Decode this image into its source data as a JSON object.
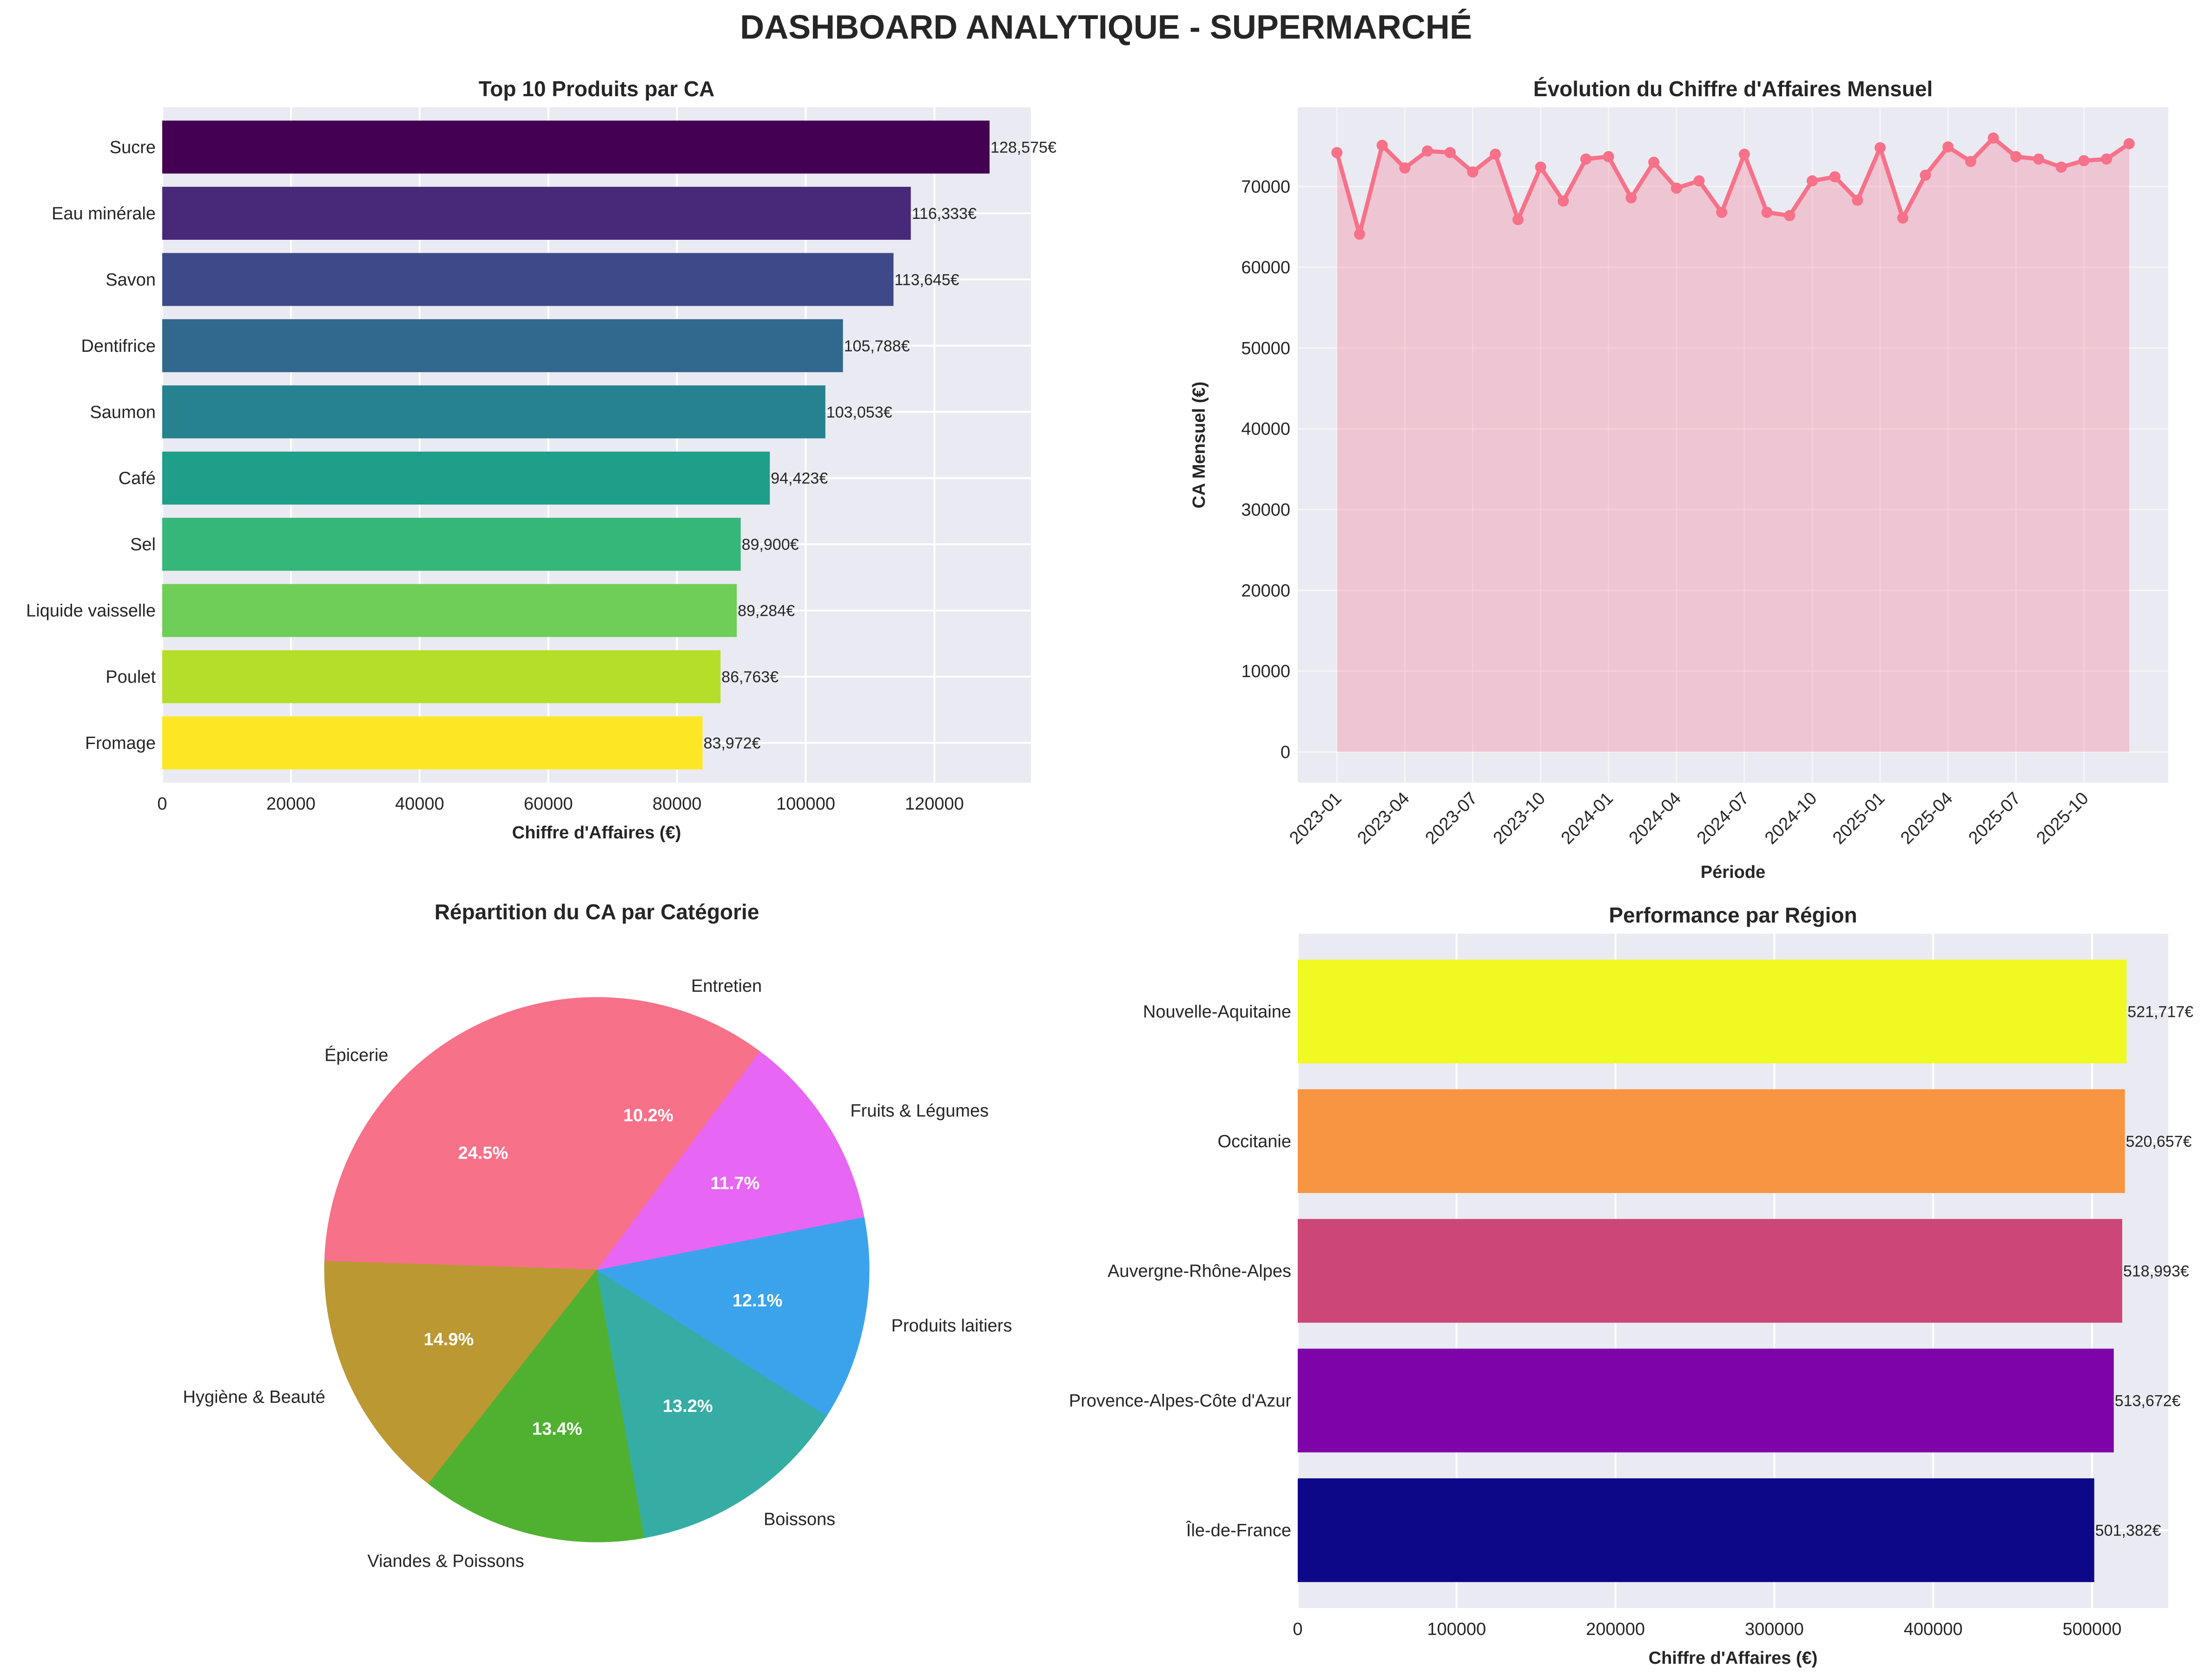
{
  "title": "DASHBOARD ANALYTIQUE - SUPERMARCHÉ",
  "chart_data": [
    {
      "type": "bar",
      "orientation": "horizontal",
      "title": "Top 10 Produits par CA",
      "xlabel": "Chiffre d'Affaires (€)",
      "ylabel": "",
      "categories": [
        "Sucre",
        "Eau minérale",
        "Savon",
        "Dentifrice",
        "Saumon",
        "Café",
        "Sel",
        "Liquide vaisselle",
        "Poulet",
        "Fromage"
      ],
      "values": [
        128575,
        116333,
        113645,
        105788,
        103053,
        94423,
        89900,
        89284,
        86763,
        83972
      ],
      "value_labels": [
        "128,575€",
        "116,333€",
        "113,645€",
        "105,788€",
        "103,053€",
        "94,423€",
        "89,900€",
        "89,284€",
        "86,763€",
        "83,972€"
      ],
      "colors": [
        "#440154",
        "#482878",
        "#3e4989",
        "#31688e",
        "#26828e",
        "#1f9e89",
        "#35b779",
        "#6ece58",
        "#b5de2b",
        "#fde725"
      ],
      "xlim": [
        0,
        135000
      ],
      "xticks": [
        0,
        20000,
        40000,
        60000,
        80000,
        100000,
        120000
      ],
      "xtick_labels": [
        "0",
        "20000",
        "40000",
        "60000",
        "80000",
        "100000",
        "120000"
      ],
      "grid": true
    },
    {
      "type": "line",
      "title": "Évolution du Chiffre d'Affaires Mensuel",
      "xlabel": "Période",
      "ylabel": "CA Mensuel (€)",
      "x": [
        "2023-01",
        "2023-02",
        "2023-03",
        "2023-04",
        "2023-05",
        "2023-06",
        "2023-07",
        "2023-08",
        "2023-09",
        "2023-10",
        "2023-11",
        "2023-12",
        "2024-01",
        "2024-02",
        "2024-03",
        "2024-04",
        "2024-05",
        "2024-06",
        "2024-07",
        "2024-08",
        "2024-09",
        "2024-10",
        "2024-11",
        "2024-12",
        "2025-01",
        "2025-02",
        "2025-03",
        "2025-04",
        "2025-05",
        "2025-06",
        "2025-07",
        "2025-08",
        "2025-09",
        "2025-10",
        "2025-11",
        "2025-12"
      ],
      "series": [
        {
          "name": "CA Mensuel",
          "color": "#f77189",
          "fill": true,
          "values": [
            74200,
            64100,
            75100,
            72300,
            74400,
            74200,
            71800,
            74000,
            65900,
            72400,
            68200,
            73400,
            73700,
            68600,
            73000,
            69800,
            70700,
            66800,
            74000,
            66800,
            66400,
            70700,
            71200,
            68300,
            74800,
            66100,
            71400,
            74900,
            73100,
            76000,
            73700,
            73400,
            72400,
            73200,
            73400,
            75300
          ]
        }
      ],
      "ylim": [
        -3800,
        79800
      ],
      "yticks": [
        0,
        10000,
        20000,
        30000,
        40000,
        50000,
        60000,
        70000
      ],
      "ytick_labels": [
        "0",
        "10000",
        "20000",
        "30000",
        "40000",
        "50000",
        "60000",
        "70000"
      ],
      "xtick_labels": [
        "2023-01",
        "2023-04",
        "2023-07",
        "2023-10",
        "2024-01",
        "2024-04",
        "2024-07",
        "2024-10",
        "2025-01",
        "2025-04",
        "2025-07",
        "2025-10"
      ],
      "grid": true
    },
    {
      "type": "pie",
      "title": "Répartition du CA par Catégorie",
      "start_angle": 90,
      "direction": "counterclockwise",
      "slices": [
        {
          "label": "Épicerie",
          "value": 24.5,
          "pct_label": "24.5%",
          "color": "#f77189"
        },
        {
          "label": "Hygiène & Beauté",
          "value": 14.9,
          "pct_label": "14.9%",
          "color": "#bb9832"
        },
        {
          "label": "Viandes & Poissons",
          "value": 13.4,
          "pct_label": "13.4%",
          "color": "#50b131"
        },
        {
          "label": "Boissons",
          "value": 13.2,
          "pct_label": "13.2%",
          "color": "#36ada4"
        },
        {
          "label": "Produits laitiers",
          "value": 12.1,
          "pct_label": "12.1%",
          "color": "#3ba3ec"
        },
        {
          "label": "Fruits & Légumes",
          "value": 11.7,
          "pct_label": "11.7%",
          "color": "#e866f4"
        },
        {
          "label": "Entretien",
          "value": 10.2,
          "pct_label": "10.2%",
          "color": "#f77189"
        }
      ]
    },
    {
      "type": "bar",
      "orientation": "horizontal",
      "title": "Performance par Région",
      "xlabel": "Chiffre d'Affaires (€)",
      "ylabel": "",
      "categories": [
        "Nouvelle-Aquitaine",
        "Occitanie",
        "Auvergne-Rhône-Alpes",
        "Provence-Alpes-Côte d'Azur",
        "Île-de-France"
      ],
      "values": [
        521717,
        520657,
        518993,
        513672,
        501382
      ],
      "value_labels": [
        "521,717€",
        "520,657€",
        "518,993€",
        "513,672€",
        "501,382€"
      ],
      "colors": [
        "#f0f921",
        "#f89540",
        "#cc4778",
        "#7e03a8",
        "#0d0887"
      ],
      "xlim": [
        0,
        548000
      ],
      "xticks": [
        0,
        100000,
        200000,
        300000,
        400000,
        500000
      ],
      "xtick_labels": [
        "0",
        "100000",
        "200000",
        "300000",
        "400000",
        "500000"
      ],
      "grid": true
    }
  ]
}
